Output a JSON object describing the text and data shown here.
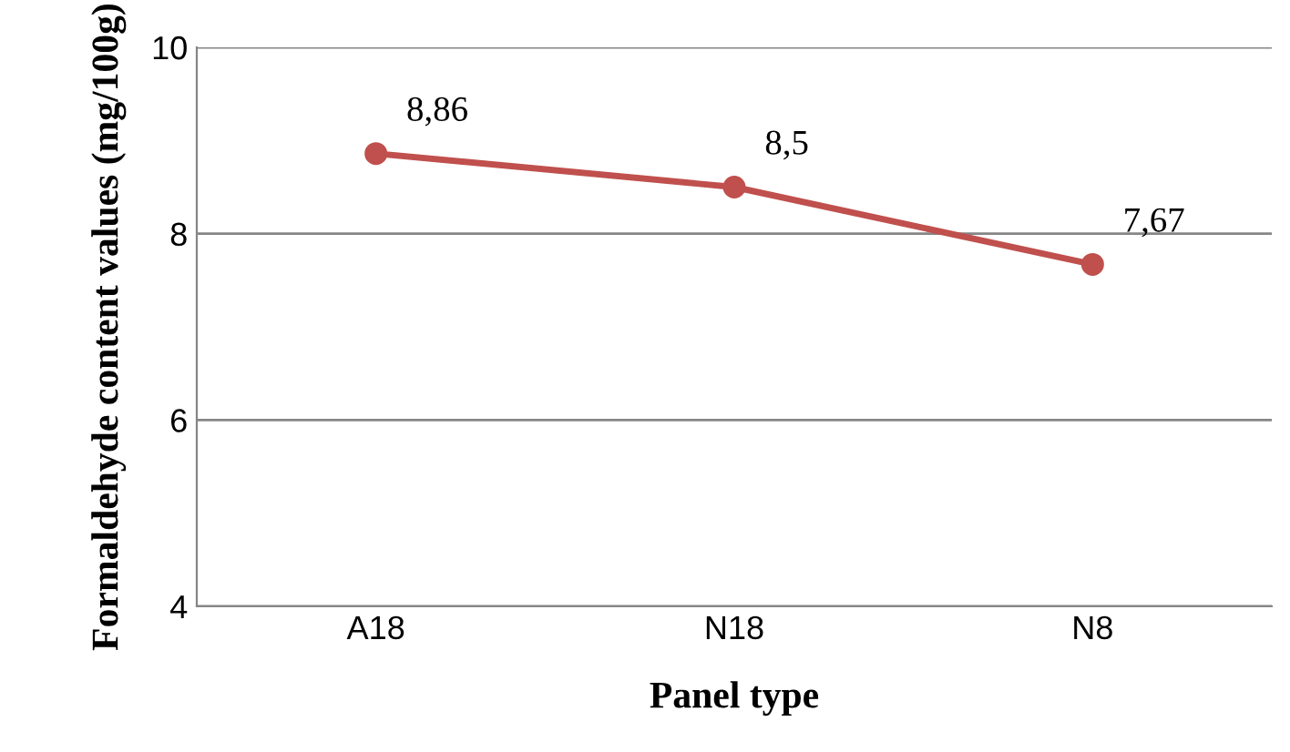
{
  "chart_data": {
    "type": "line",
    "xlabel": "Panel type",
    "ylabel": "Formaldehyde content values (mg/100g)",
    "categories": [
      "A18",
      "N18",
      "N8"
    ],
    "series": [
      {
        "color": "#c0504d",
        "values": [
          8.86,
          8.5,
          7.67
        ],
        "value_labels": [
          "8,86",
          "8,5",
          "7,67"
        ]
      }
    ],
    "ylim": [
      4,
      10
    ],
    "yticks": [
      4,
      6,
      8,
      10
    ],
    "grid": "y",
    "marker": "circle",
    "line_style": "solid",
    "legend": false
  }
}
